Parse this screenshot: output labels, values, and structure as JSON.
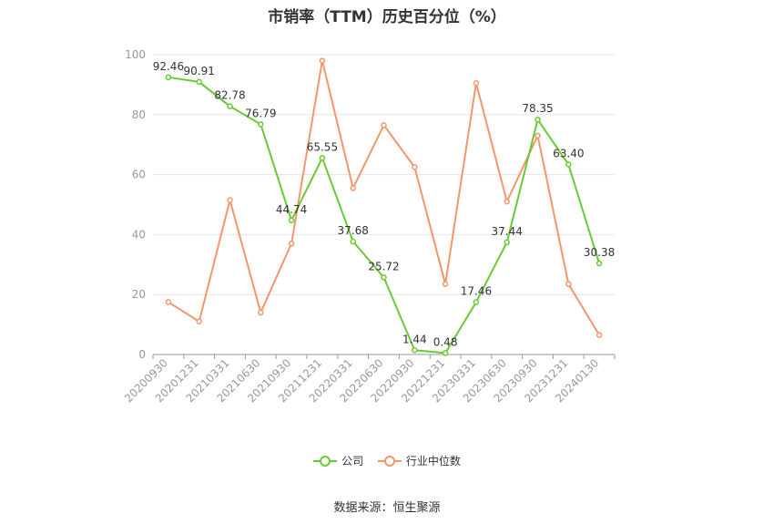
{
  "chart_data": {
    "type": "line",
    "title": "市销率（TTM）历史百分位（%）",
    "source": "数据来源：恒生聚源",
    "x": [
      "20200930",
      "20201231",
      "20210331",
      "20210630",
      "20210930",
      "20211231",
      "20220331",
      "20220630",
      "20220930",
      "20221231",
      "20230331",
      "20230630",
      "20230930",
      "20231231",
      "20240130"
    ],
    "ylim": [
      0,
      100
    ],
    "yticks": [
      "0",
      "20",
      "40",
      "60",
      "80",
      "100"
    ],
    "grid": true,
    "legend_position": "bottom",
    "series": [
      {
        "name": "公司",
        "color": "#66cc33",
        "labels": true,
        "values": [
          92.46,
          90.91,
          82.78,
          76.79,
          44.74,
          65.55,
          37.68,
          25.72,
          1.44,
          0.48,
          17.46,
          37.44,
          78.35,
          63.4,
          30.38
        ],
        "label_text": [
          "92.46",
          "90.91",
          "82.78",
          "76.79",
          "44.74",
          "65.55",
          "37.68",
          "25.72",
          "1.44",
          "0.48",
          "17.46",
          "37.44",
          "78.35",
          "63.40",
          "30.38"
        ]
      },
      {
        "name": "行业中位数",
        "color": "#f4956a",
        "labels": false,
        "values": [
          17.5,
          11.0,
          51.5,
          14.0,
          37.0,
          98.0,
          55.5,
          76.5,
          62.5,
          23.5,
          90.5,
          51.0,
          73.0,
          23.5,
          6.5
        ]
      }
    ]
  }
}
